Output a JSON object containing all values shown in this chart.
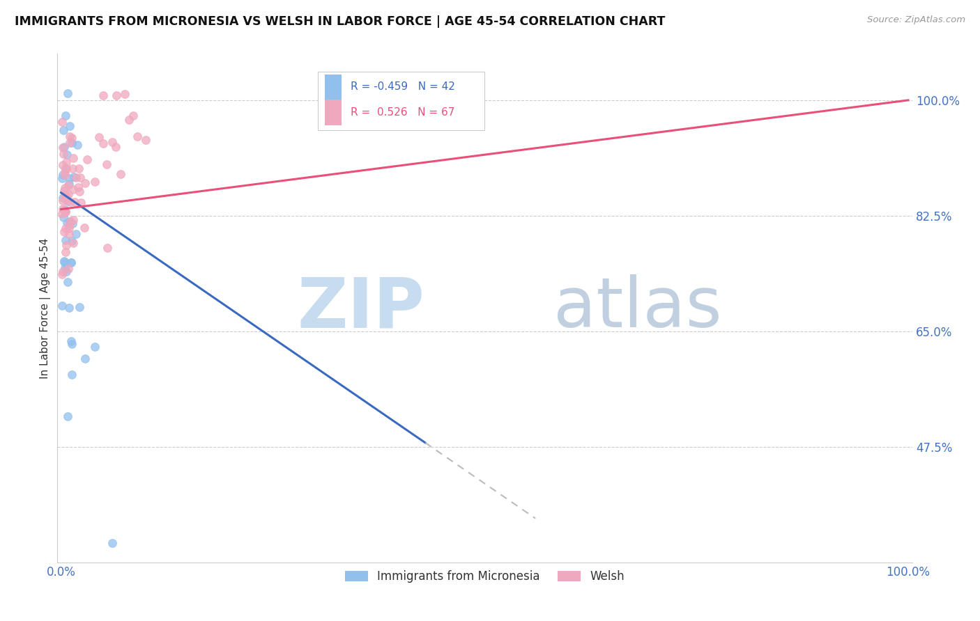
{
  "title": "IMMIGRANTS FROM MICRONESIA VS WELSH IN LABOR FORCE | AGE 45-54 CORRELATION CHART",
  "source": "Source: ZipAtlas.com",
  "ylabel": "In Labor Force | Age 45-54",
  "legend_label_micronesia": "Immigrants from Micronesia",
  "legend_label_welsh": "Welsh",
  "micronesia_color": "#92c0ed",
  "welsh_color": "#f0a8be",
  "trend_micro_color": "#3a6abf",
  "trend_welsh_color": "#e8507a",
  "trend_dash_color": "#bbbbbb",
  "axis_color": "#4472c4",
  "ytick_vals": [
    0.475,
    0.65,
    0.825,
    1.0
  ],
  "ytick_labels": [
    "47.5%",
    "65.0%",
    "82.5%",
    "100.0%"
  ],
  "xlim": [
    0.0,
    1.0
  ],
  "ylim_min": 0.3,
  "ylim_max": 1.07,
  "micro_trend_x0": 0.0,
  "micro_trend_y0": 0.86,
  "micro_trend_slope": -0.88,
  "micro_trend_solid_end": 0.43,
  "micro_trend_dash_end": 0.56,
  "welsh_trend_x0": 0.0,
  "welsh_trend_y0": 0.835,
  "welsh_trend_slope": 0.165,
  "welsh_trend_end": 1.0,
  "legend_R_micro": "R = -0.459",
  "legend_N_micro": "N = 42",
  "legend_R_welsh": "R =  0.526",
  "legend_N_welsh": "N = 67",
  "watermark_zip_color": "#c8dcf0",
  "watermark_atlas_color": "#c0d0e0"
}
